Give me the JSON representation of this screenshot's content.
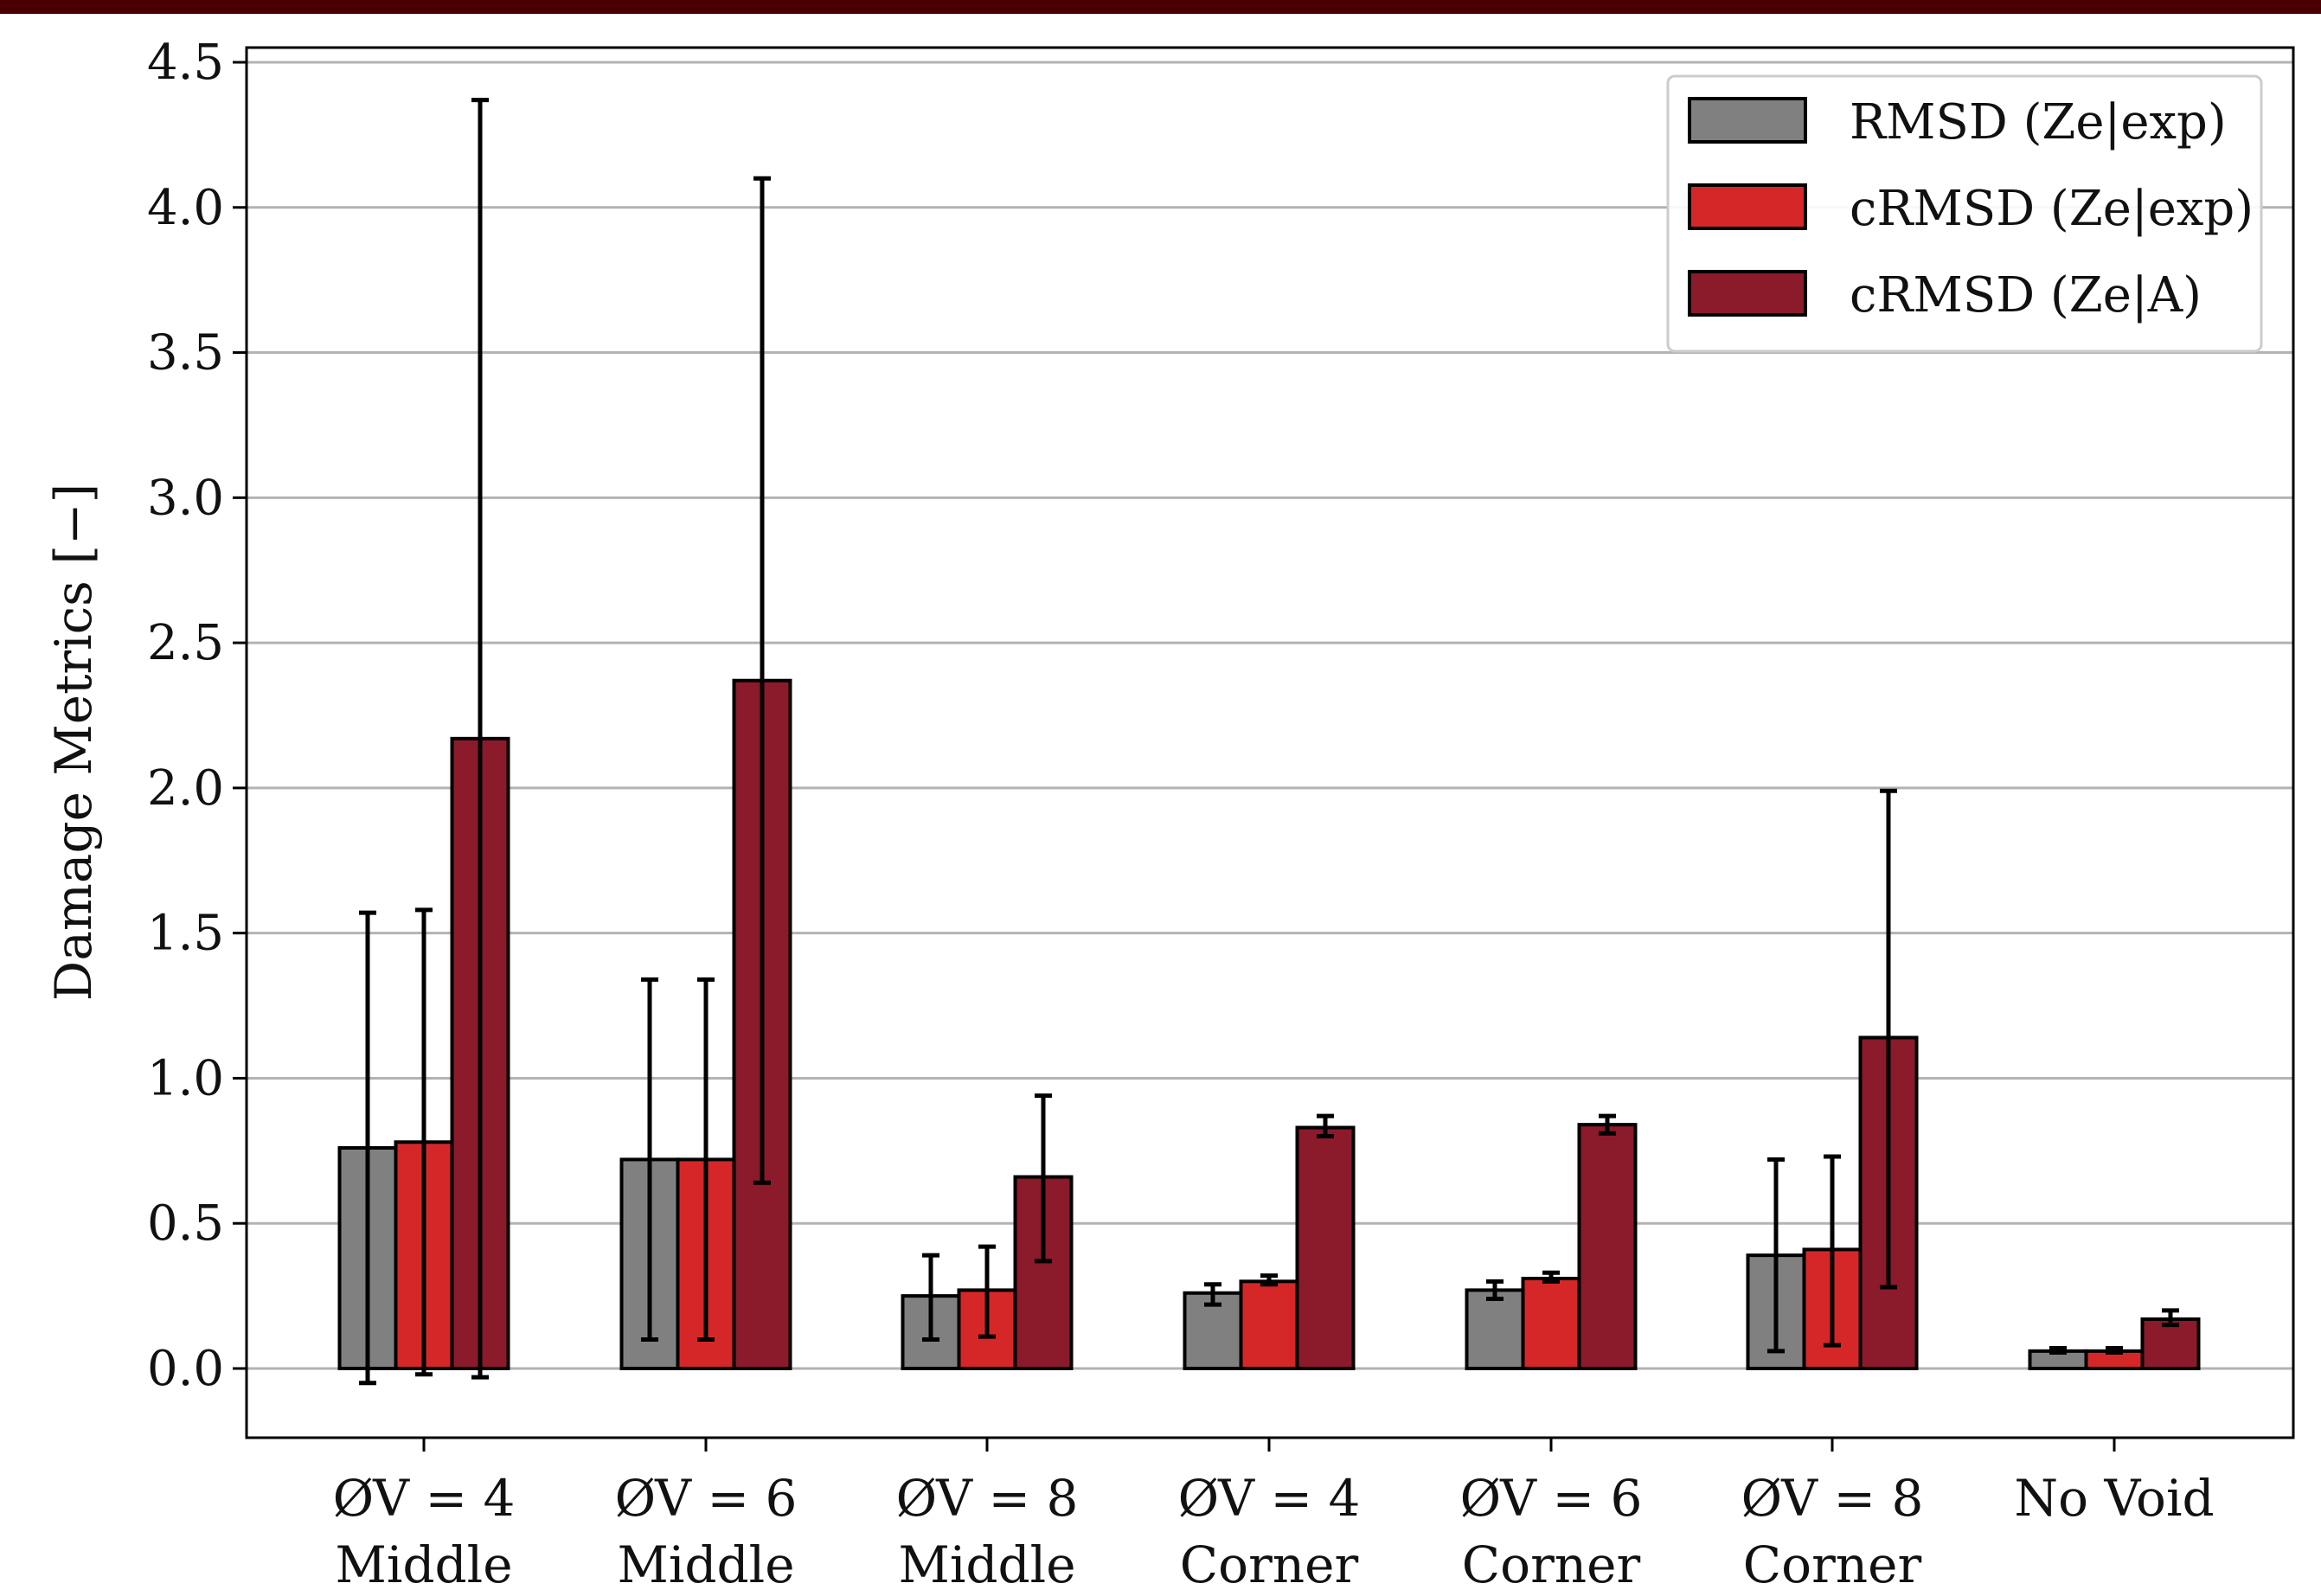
{
  "chart_data": {
    "type": "bar",
    "title": "",
    "xlabel": "",
    "ylabel": "Damage Metrics [−]",
    "ylim": [
      -0.25,
      4.55
    ],
    "yticks": [
      "0.0",
      "0.5",
      "1.0",
      "1.5",
      "2.0",
      "2.5",
      "3.0",
      "3.5",
      "4.0",
      "4.5"
    ],
    "grid": "horizontal",
    "legend_position": "top-right",
    "categories": [
      [
        "ØV = 4",
        "Middle"
      ],
      [
        "ØV = 6",
        "Middle"
      ],
      [
        "ØV = 8",
        "Middle"
      ],
      [
        "ØV = 4",
        "Corner"
      ],
      [
        "ØV = 6",
        "Corner"
      ],
      [
        "ØV = 8",
        "Corner"
      ],
      [
        "No Void",
        ""
      ]
    ],
    "series": [
      {
        "name": "RMSD (Ze|exp)",
        "color": "#808080",
        "values": [
          0.76,
          0.72,
          0.25,
          0.26,
          0.27,
          0.39,
          0.06
        ],
        "err_low": [
          -0.05,
          0.1,
          0.1,
          0.22,
          0.24,
          0.06,
          0.055
        ],
        "err_high": [
          1.57,
          1.34,
          0.39,
          0.29,
          0.3,
          0.72,
          0.07
        ]
      },
      {
        "name": "cRMSD (Ze|exp)",
        "color": "#d62728",
        "values": [
          0.78,
          0.72,
          0.27,
          0.3,
          0.31,
          0.41,
          0.06
        ],
        "err_low": [
          -0.02,
          0.1,
          0.11,
          0.29,
          0.3,
          0.08,
          0.055
        ],
        "err_high": [
          1.58,
          1.34,
          0.42,
          0.32,
          0.33,
          0.73,
          0.07
        ]
      },
      {
        "name": "cRMSD (Ze|A)",
        "color": "#8b1a2b",
        "values": [
          2.17,
          2.37,
          0.66,
          0.83,
          0.84,
          1.14,
          0.17
        ],
        "err_low": [
          -0.03,
          0.64,
          0.37,
          0.8,
          0.81,
          0.28,
          0.15
        ],
        "err_high": [
          4.37,
          4.1,
          0.94,
          0.87,
          0.87,
          1.99,
          0.2
        ]
      }
    ]
  }
}
